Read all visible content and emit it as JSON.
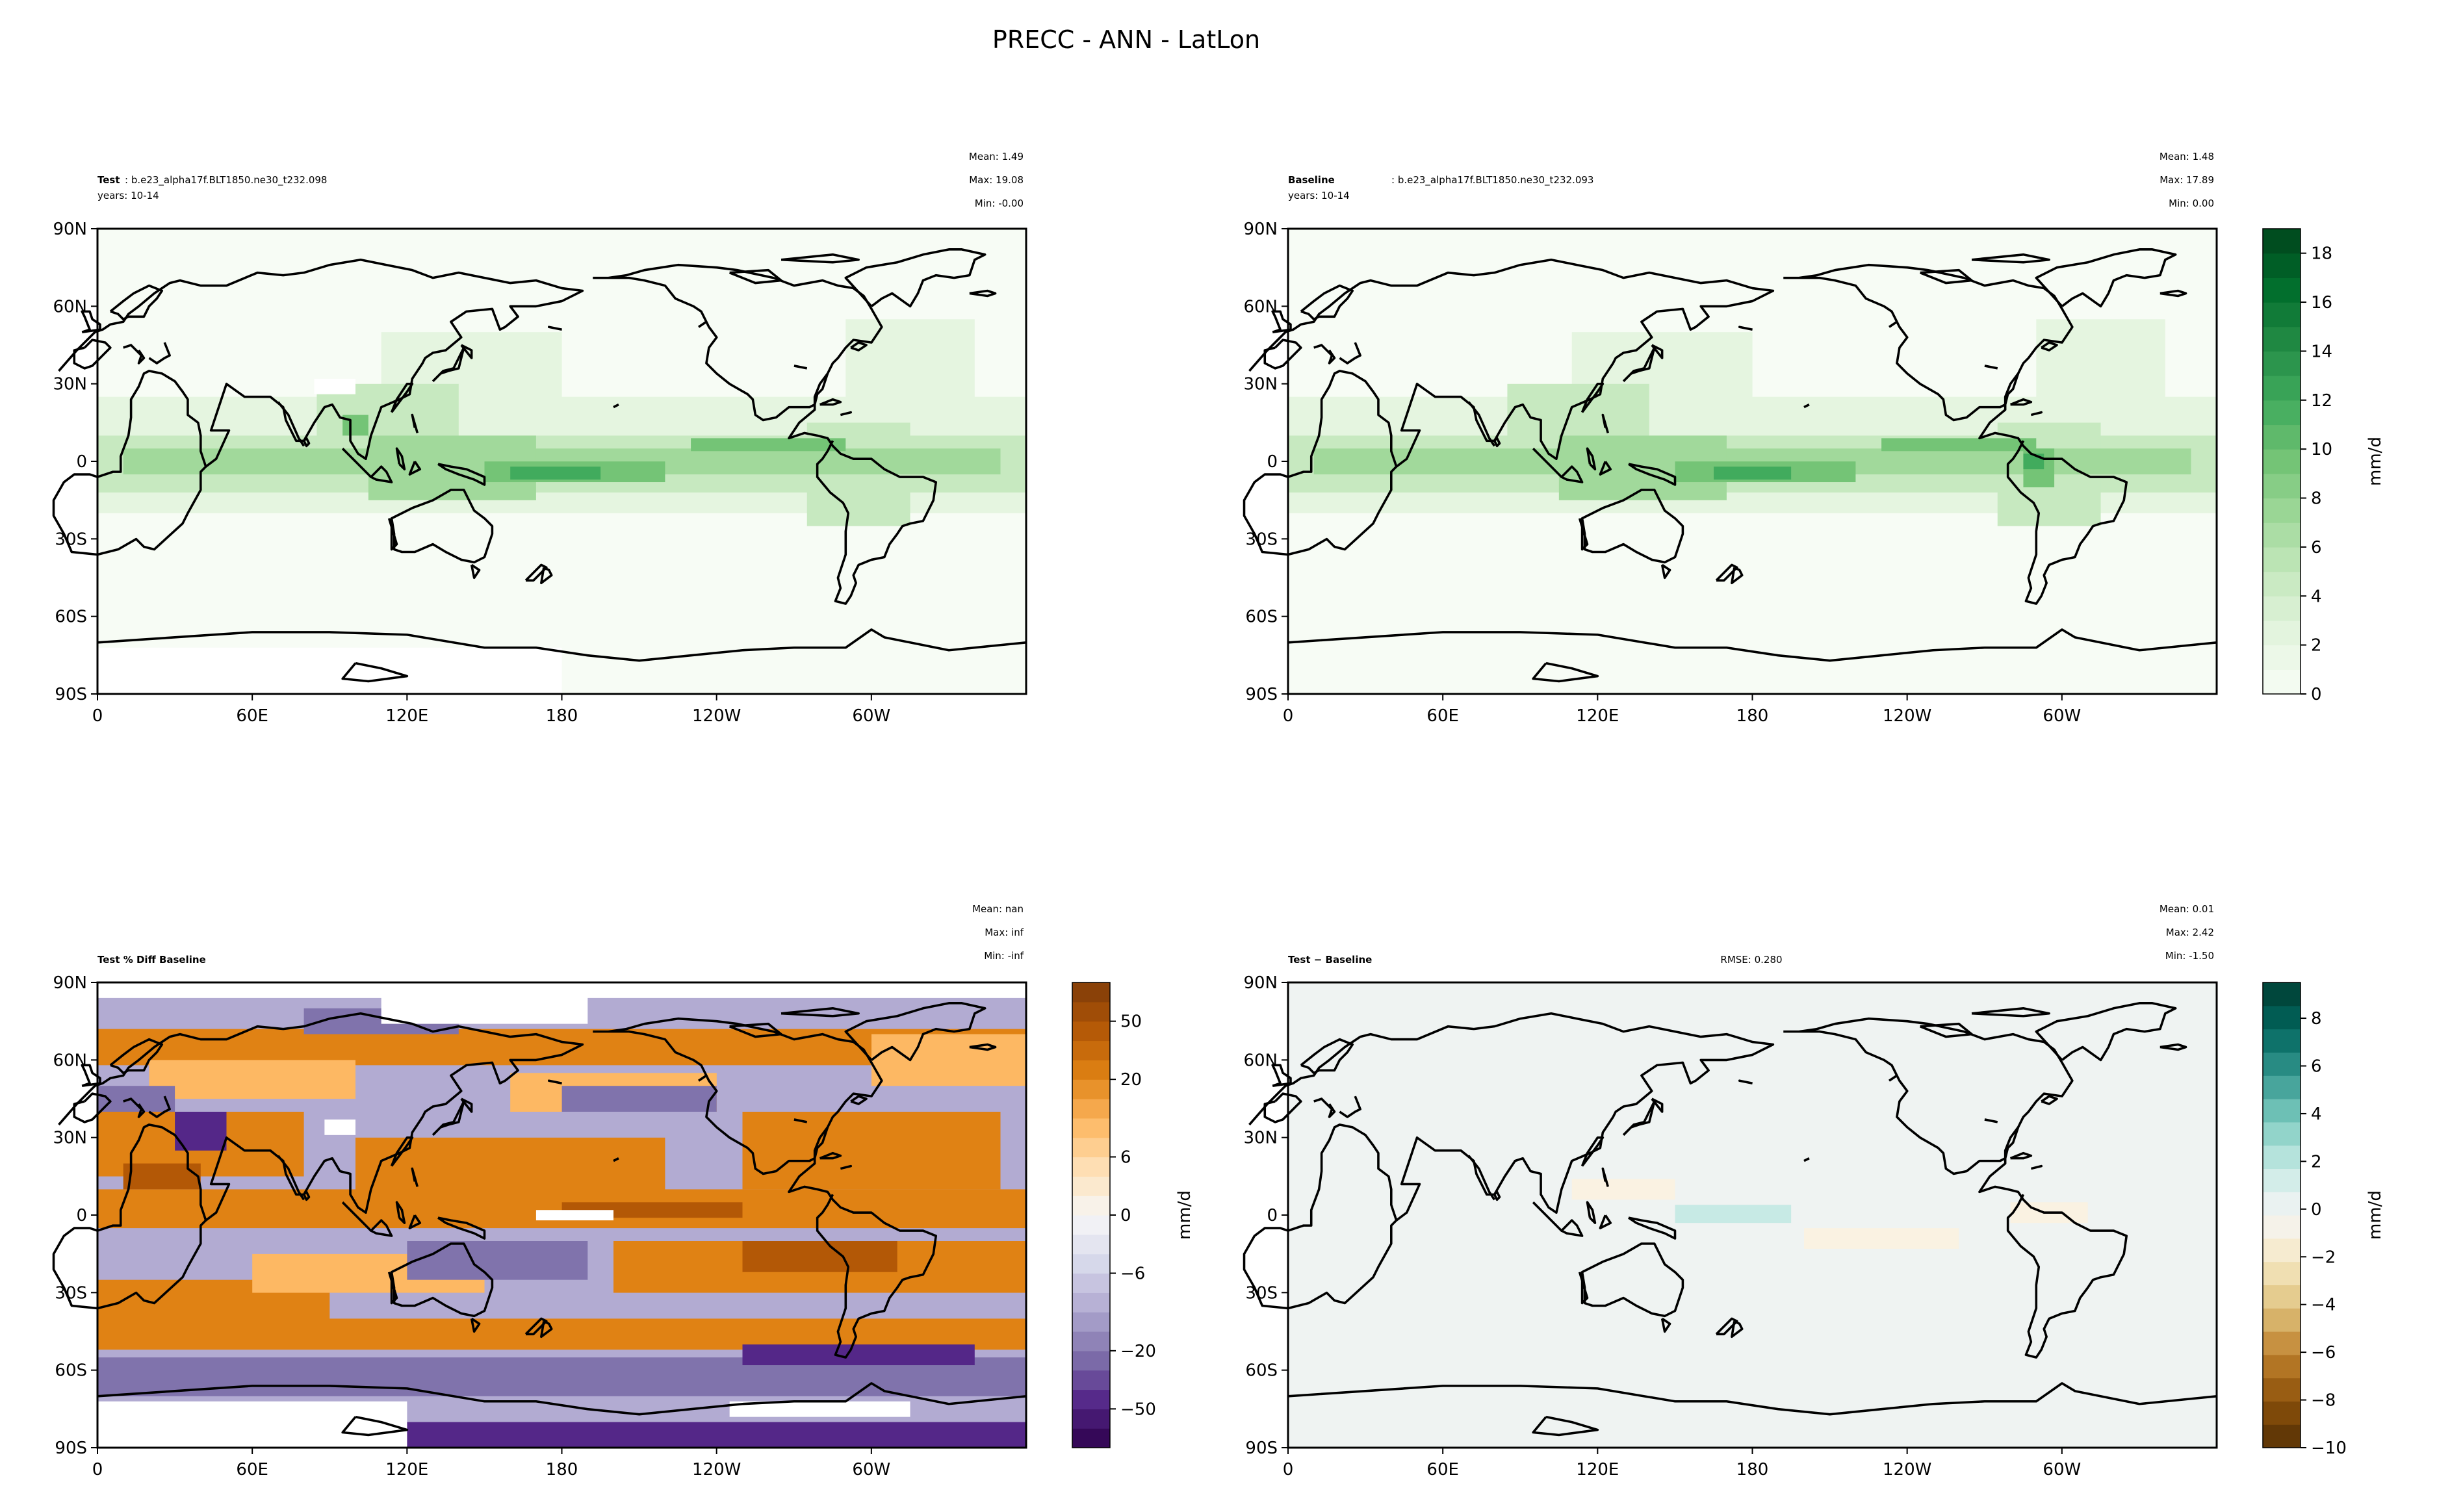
{
  "figure": {
    "title": "PRECC - ANN - LatLon"
  },
  "colors": {
    "precip_scale": [
      "#f7fcf5",
      "#e5f5e0",
      "#c7e9c0",
      "#a1d99b",
      "#74c476",
      "#41ab5d",
      "#238b45",
      "#006d2c",
      "#00441b"
    ],
    "pctdiff_scale": [
      "#2d004b",
      "#542788",
      "#8073ac",
      "#b2abd2",
      "#d8daeb",
      "#f7f7f7",
      "#fee0b6",
      "#fdb863",
      "#e08214",
      "#b35806",
      "#7f3b08"
    ],
    "diff_scale": [
      "#543005",
      "#8c510a",
      "#bf812d",
      "#dfc27d",
      "#f6e8c3",
      "#f5f5f5",
      "#c7eae5",
      "#80cdc1",
      "#35978f",
      "#01665e",
      "#003c30"
    ]
  },
  "chart_data": [
    {
      "type": "heatmap",
      "id": "test",
      "title_bold": "Test",
      "title_text": ": b.e23_alpha17f.BLT1850.ne30_t232.098",
      "subtitle": "years: 10-14",
      "stats": {
        "mean": "Mean:  1.49",
        "max": "Max: 19.08",
        "min": "Min: -0.00"
      },
      "xticks": [
        "0",
        "60E",
        "120E",
        "180",
        "120W",
        "60W"
      ],
      "yticks": [
        "90N",
        "60N",
        "30N",
        "0",
        "30S",
        "60S",
        "90S"
      ],
      "xlim": [
        0,
        360
      ],
      "ylim": [
        -90,
        90
      ],
      "colorbar": null
    },
    {
      "type": "heatmap",
      "id": "baseline",
      "title_bold": "Baseline",
      "title_text": ": b.e23_alpha17f.BLT1850.ne30_t232.093",
      "subtitle": "years: 10-14",
      "stats": {
        "mean": "Mean:  1.48",
        "max": "Max: 17.89",
        "min": "Min:  0.00"
      },
      "xticks": [
        "0",
        "60E",
        "120E",
        "180",
        "120W",
        "60W"
      ],
      "yticks": [
        "90N",
        "60N",
        "30N",
        "0",
        "30S",
        "60S",
        "90S"
      ],
      "xlim": [
        0,
        360
      ],
      "ylim": [
        -90,
        90
      ],
      "colorbar": {
        "label": "mm/d",
        "ticks": [
          "0",
          "2",
          "4",
          "6",
          "8",
          "10",
          "12",
          "14",
          "16",
          "18"
        ],
        "range": [
          0,
          19
        ]
      }
    },
    {
      "type": "heatmap",
      "id": "pctdiff",
      "title_bold": "Test % Diff Baseline",
      "title_text": "",
      "subtitle": "",
      "stats": {
        "mean": "Mean:   nan",
        "max": "Max:   inf",
        "min": "Min:  -inf"
      },
      "xticks": [
        "0",
        "60E",
        "120E",
        "180",
        "120W",
        "60W"
      ],
      "yticks": [
        "90N",
        "60N",
        "30N",
        "0",
        "30S",
        "60S",
        "90S"
      ],
      "xlim": [
        0,
        360
      ],
      "ylim": [
        -90,
        90
      ],
      "colorbar": {
        "label": "mm/d",
        "ticks": [
          "50",
          "20",
          "6",
          "0",
          "−6",
          "−20",
          "−50"
        ],
        "levels": [
          "-100",
          "-70",
          "-50",
          "-40",
          "-30",
          "-20",
          "-15",
          "-10",
          "-8",
          "-6",
          "-4",
          "-2",
          "0",
          "2",
          "4",
          "6",
          "8",
          "10",
          "15",
          "20",
          "30",
          "40",
          "50",
          "70",
          "100"
        ]
      }
    },
    {
      "type": "heatmap",
      "id": "diff",
      "title_bold": "Test − Baseline",
      "title_text": "",
      "subtitle": "",
      "rmse": "RMSE: 0.280",
      "stats": {
        "mean": "Mean:  0.01",
        "max": "Max:  2.42",
        "min": "Min: -1.50"
      },
      "xticks": [
        "0",
        "60E",
        "120E",
        "180",
        "120W",
        "60W"
      ],
      "yticks": [
        "90N",
        "60N",
        "30N",
        "0",
        "30S",
        "60S",
        "90S"
      ],
      "xlim": [
        0,
        360
      ],
      "ylim": [
        -90,
        90
      ],
      "colorbar": {
        "label": "mm/d",
        "ticks": [
          "8",
          "6",
          "4",
          "2",
          "0",
          "−2",
          "−4",
          "−6",
          "−8",
          "−10"
        ],
        "range": [
          -10,
          9.5
        ]
      }
    }
  ]
}
